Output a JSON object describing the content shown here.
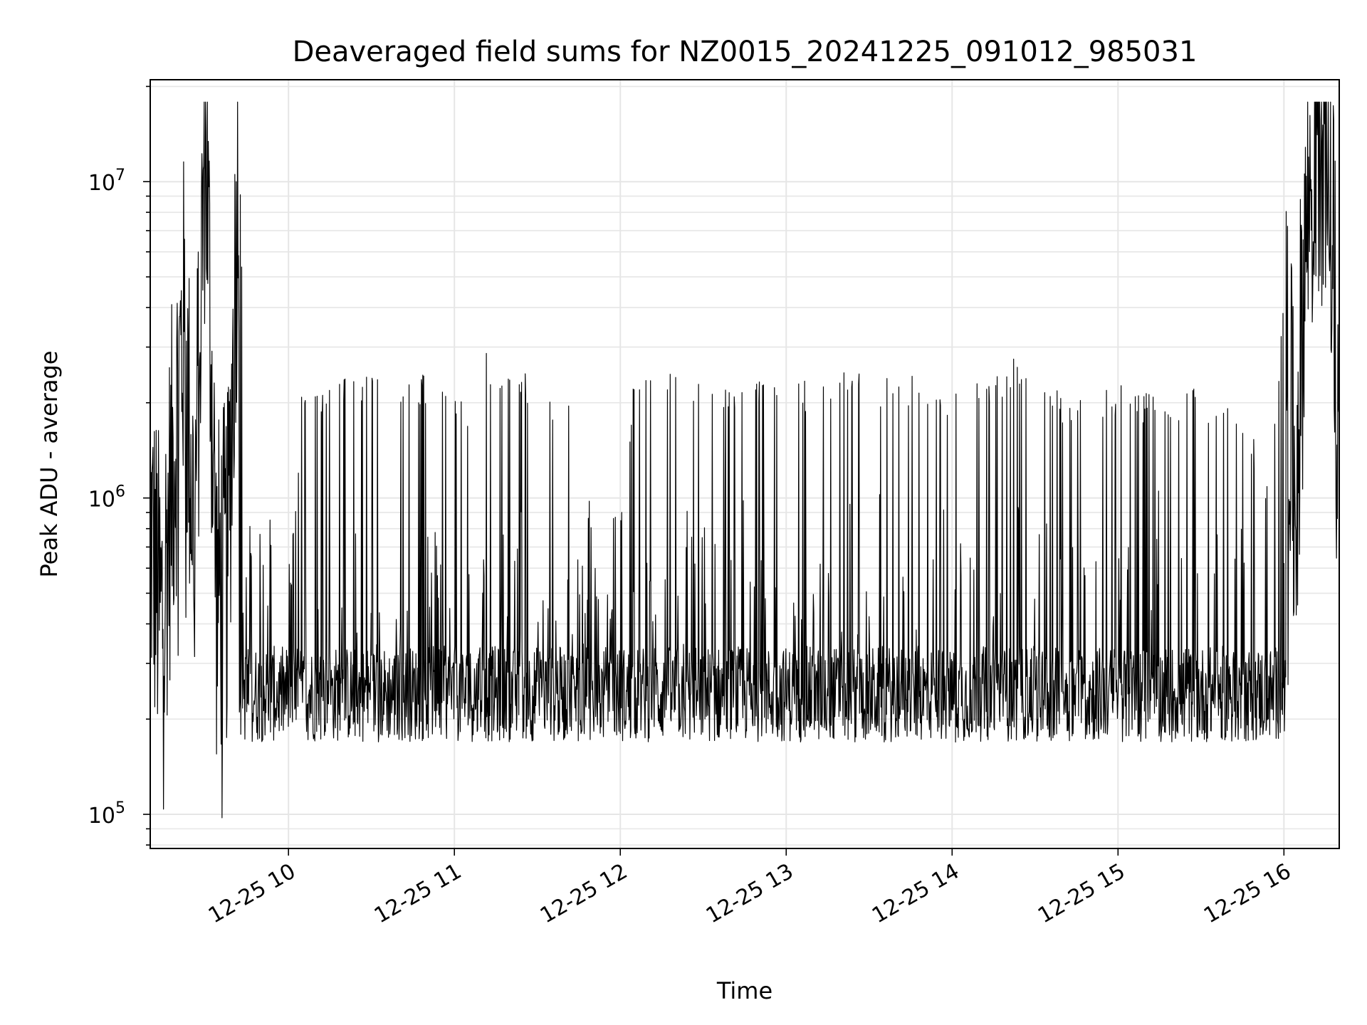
{
  "chart_data": {
    "type": "line",
    "title": "Deaveraged field sums for NZ0015_20241225_091012_985031",
    "xlabel": "Time",
    "ylabel": "Peak ADU - average",
    "x_ticks": [
      "12-25 10",
      "12-25 11",
      "12-25 12",
      "12-25 13",
      "12-25 14",
      "12-25 15",
      "12-25 16"
    ],
    "x_range": [
      "2024-12-25 09:10",
      "2024-12-25 16:20"
    ],
    "y_scale": "log",
    "ylim": [
      78000,
      21000000
    ],
    "y_ticks": [
      {
        "value": 100000,
        "base": "10",
        "exp": "5"
      },
      {
        "value": 1000000,
        "base": "10",
        "exp": "6"
      },
      {
        "value": 10000000,
        "base": "10",
        "exp": "7"
      }
    ],
    "grid": true,
    "line_color": "#000000",
    "grid_color": "#e6e6e6",
    "series": [
      {
        "x": [
          "2024-12-25 09:10",
          "2024-12-25 09:14",
          "2024-12-25 09:18",
          "2024-12-25 09:22",
          "2024-12-25 09:26",
          "2024-12-25 09:30",
          "2024-12-25 09:34",
          "2024-12-25 09:38",
          "2024-12-25 09:42",
          "2024-12-25 09:46",
          "2024-12-25 09:50",
          "2024-12-25 09:54",
          "2024-12-25 09:58",
          "2024-12-25 10:05",
          "2024-12-25 10:15",
          "2024-12-25 10:25",
          "2024-12-25 10:35",
          "2024-12-25 10:45",
          "2024-12-25 10:55",
          "2024-12-25 11:05",
          "2024-12-25 11:10",
          "2024-12-25 11:15",
          "2024-12-25 11:25",
          "2024-12-25 11:35",
          "2024-12-25 11:45",
          "2024-12-25 11:55",
          "2024-12-25 12:05",
          "2024-12-25 12:15",
          "2024-12-25 12:25",
          "2024-12-25 12:35",
          "2024-12-25 12:45",
          "2024-12-25 12:55",
          "2024-12-25 13:05",
          "2024-12-25 13:15",
          "2024-12-25 13:25",
          "2024-12-25 13:35",
          "2024-12-25 13:45",
          "2024-12-25 13:55",
          "2024-12-25 14:05",
          "2024-12-25 14:15",
          "2024-12-25 14:25",
          "2024-12-25 14:35",
          "2024-12-25 14:45",
          "2024-12-25 14:55",
          "2024-12-25 15:05",
          "2024-12-25 15:15",
          "2024-12-25 15:25",
          "2024-12-25 15:35",
          "2024-12-25 15:45",
          "2024-12-25 15:55",
          "2024-12-25 16:00",
          "2024-12-25 16:04",
          "2024-12-25 16:08",
          "2024-12-25 16:12",
          "2024-12-25 16:16",
          "2024-12-25 16:20"
        ],
        "y": [
          800000,
          400000,
          1200000,
          3500000,
          800000,
          15500000,
          500000,
          600000,
          12500000,
          700000,
          800000,
          350000,
          250000,
          2000000,
          2100000,
          2200000,
          2100000,
          2300000,
          2000000,
          1900000,
          3200000,
          2100000,
          2200000,
          2000000,
          1800000,
          280000,
          2100000,
          2300000,
          2100000,
          2000000,
          2200000,
          2300000,
          2100000,
          2200000,
          2300000,
          2100000,
          2200000,
          2000000,
          2100000,
          2300000,
          2500000,
          2000000,
          1900000,
          2000000,
          2000000,
          1900000,
          2000000,
          1800000,
          1700000,
          1000000,
          4500000,
          900000,
          7500000,
          14500000,
          15000000,
          1500000
        ]
      }
    ]
  }
}
